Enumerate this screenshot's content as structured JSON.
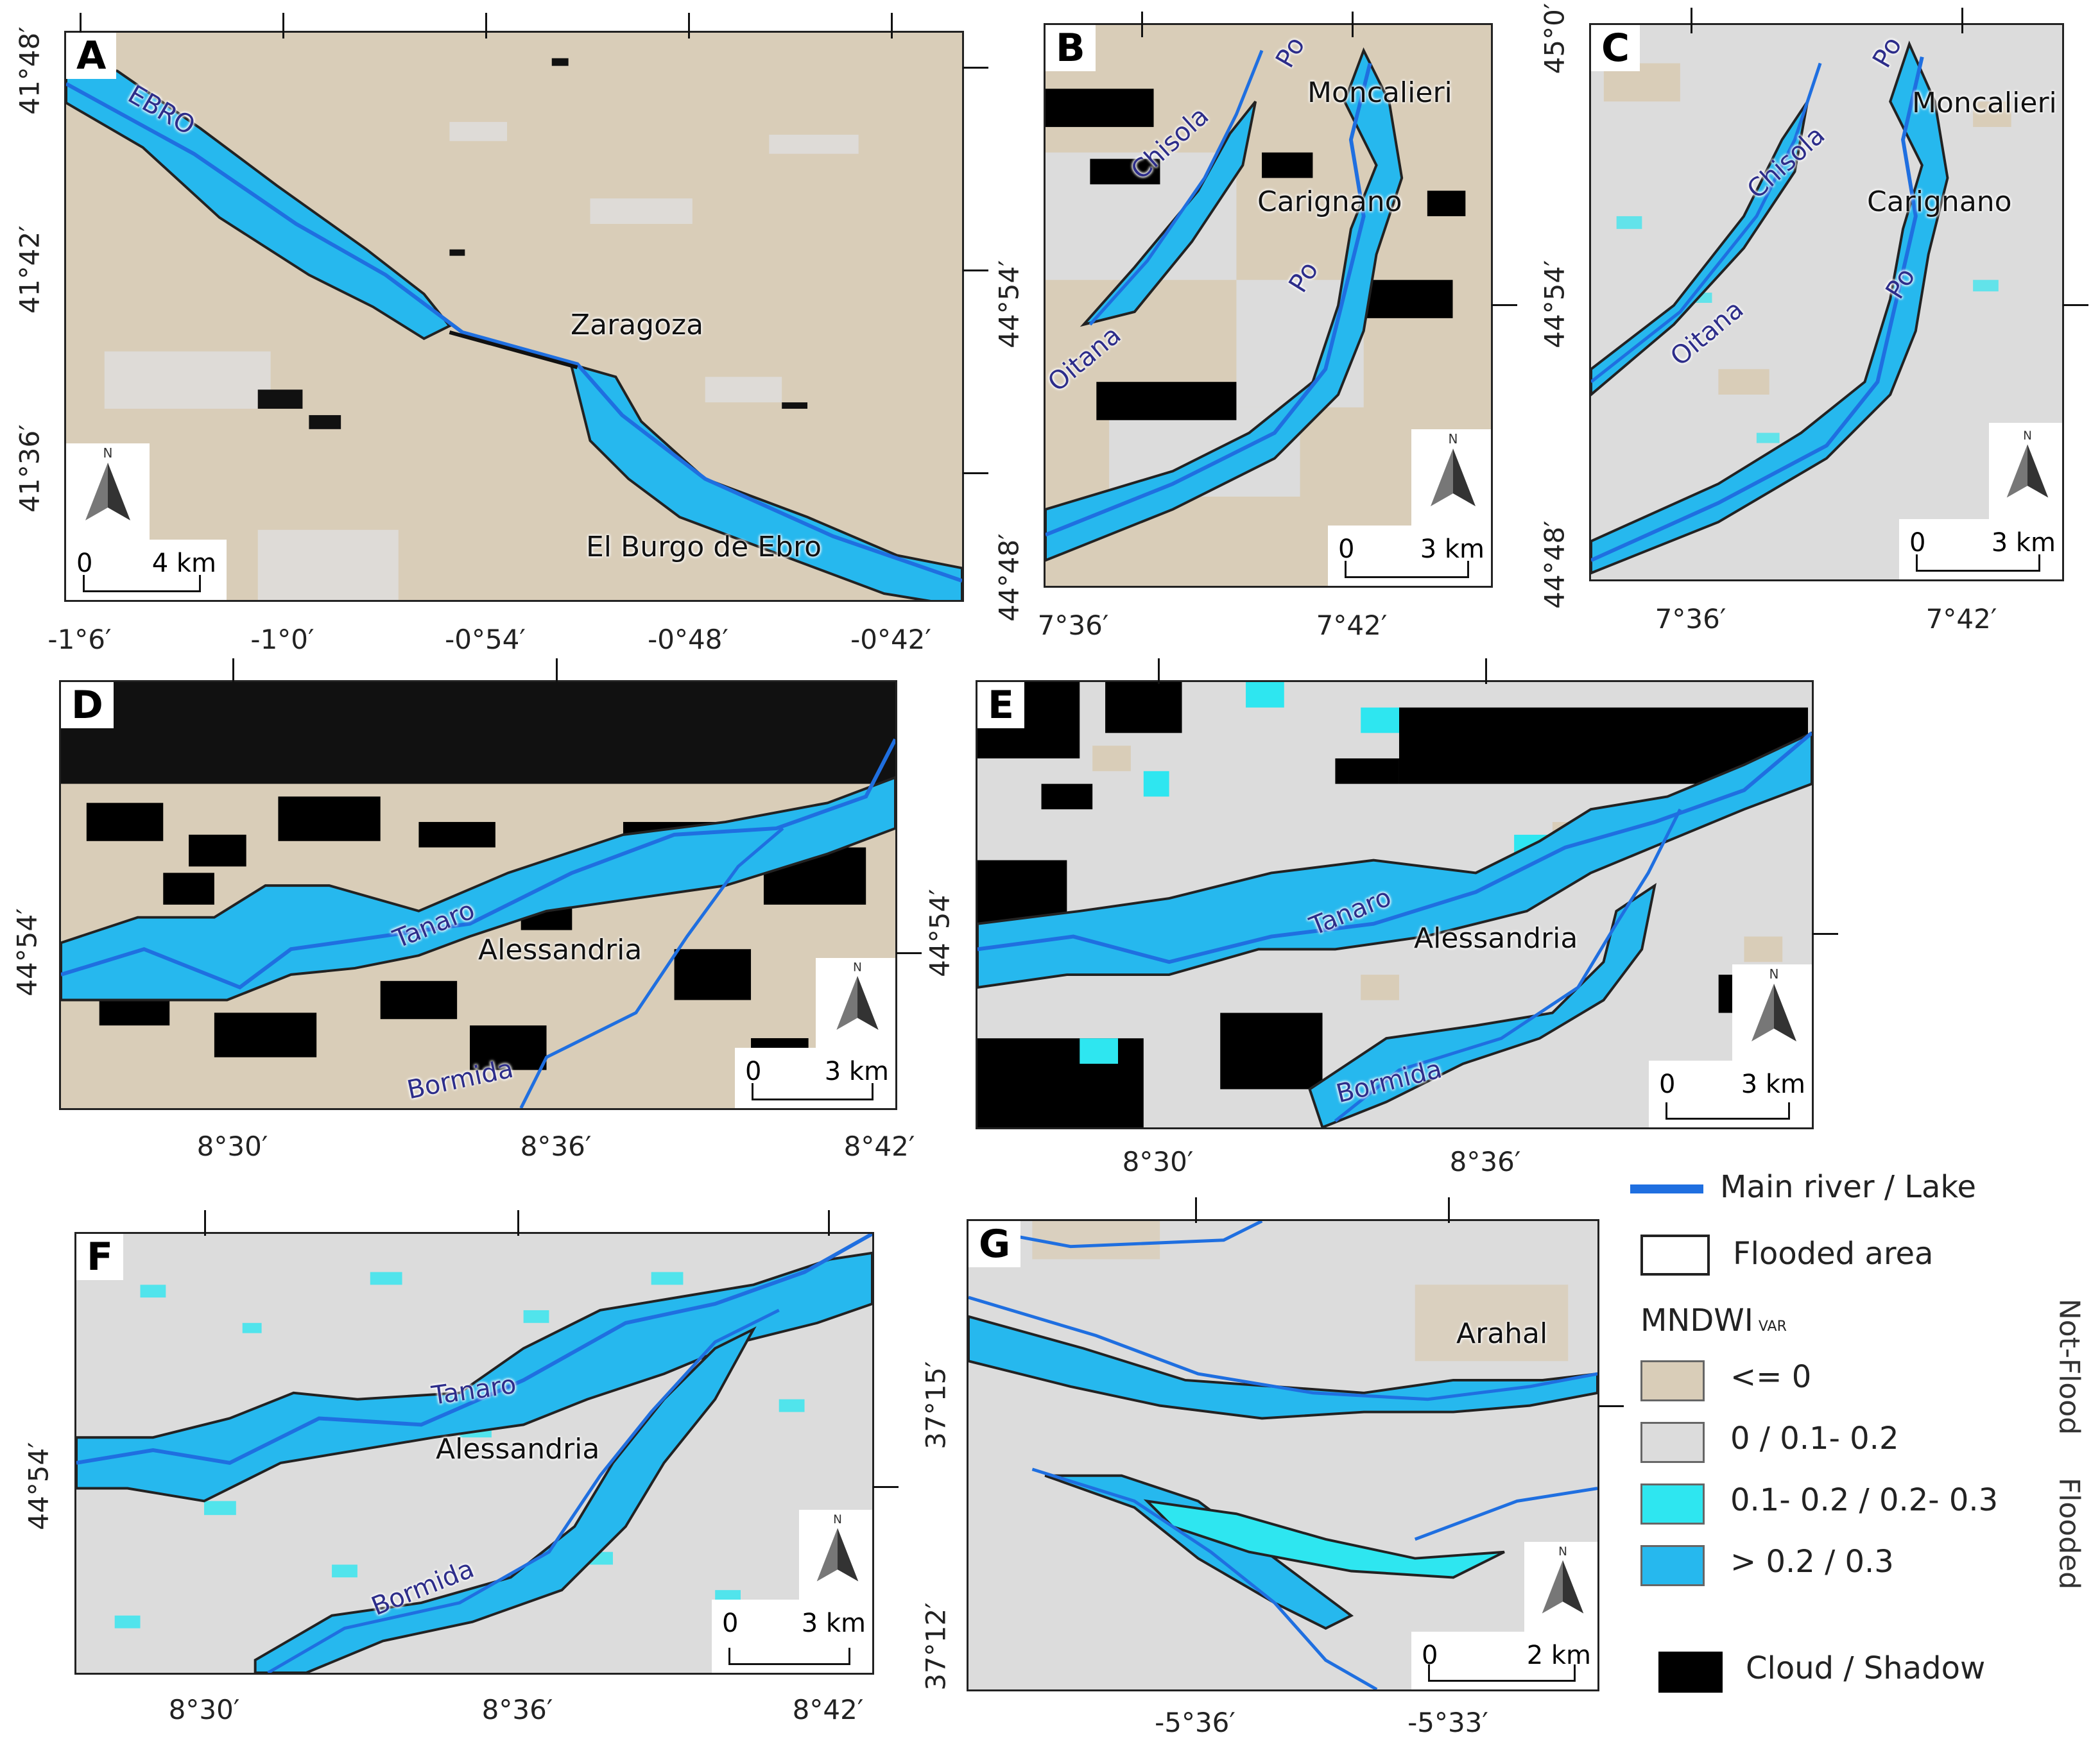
{
  "panels": {
    "A": {
      "label": "A",
      "places": [
        "Zaragoza",
        "El Burgo de Ebro"
      ],
      "rivers": [
        "EBRO"
      ],
      "scale": [
        "0",
        "4 km"
      ],
      "north_label": "N",
      "x_ticks": [
        "-1°6′",
        "-1°0′",
        "-0°54′",
        "-0°48′",
        "-0°42′"
      ],
      "y_ticks": [
        "41°48′",
        "41°42′",
        "41°36′"
      ]
    },
    "B": {
      "label": "B",
      "places": [
        "Moncalieri",
        "Carignano"
      ],
      "rivers": [
        "Po",
        "Chisola",
        "Po",
        "Oitana"
      ],
      "scale": [
        "0",
        "3 km"
      ],
      "north_label": "N",
      "x_ticks": [
        "7°36′",
        "7°42′"
      ],
      "y_ticks": [
        "44°54′",
        "44°48′"
      ]
    },
    "C": {
      "label": "C",
      "places": [
        "Moncalieri",
        "Carignano"
      ],
      "rivers": [
        "Po",
        "Chisola",
        "Po",
        "Oitana"
      ],
      "scale": [
        "0",
        "3 km"
      ],
      "north_label": "N",
      "x_ticks": [
        "7°36′",
        "7°42′"
      ],
      "y_ticks": [
        "45°0′",
        "44°54′",
        "44°48′"
      ]
    },
    "D": {
      "label": "D",
      "places": [
        "Alessandria"
      ],
      "rivers": [
        "Tanaro",
        "Bormida"
      ],
      "scale": [
        "0",
        "3 km"
      ],
      "north_label": "N",
      "x_ticks": [
        "8°30′",
        "8°36′",
        "8°42′"
      ],
      "y_ticks": [
        "44°54′"
      ]
    },
    "E": {
      "label": "E",
      "places": [
        "Alessandria"
      ],
      "rivers": [
        "Tanaro",
        "Bormida"
      ],
      "scale": [
        "0",
        "3 km"
      ],
      "north_label": "N",
      "x_ticks": [
        "8°30′",
        "8°36′"
      ],
      "y_ticks": [
        "44°54′"
      ]
    },
    "F": {
      "label": "F",
      "places": [
        "Alessandria"
      ],
      "rivers": [
        "Tanaro",
        "Bormida"
      ],
      "scale": [
        "0",
        "3 km"
      ],
      "north_label": "N",
      "x_ticks": [
        "8°30′",
        "8°36′",
        "8°42′"
      ],
      "y_ticks": [
        "44°54′"
      ]
    },
    "G": {
      "label": "G",
      "places": [
        "Arahal"
      ],
      "rivers": [],
      "scale": [
        "0",
        "2 km"
      ],
      "north_label": "N",
      "x_ticks": [
        "-5°36′",
        "-5°33′"
      ],
      "y_ticks": [
        "37°15′",
        "37°12′"
      ]
    }
  },
  "legend": {
    "main_river": "Main river /  Lake",
    "flooded_area": "Flooded area",
    "mndwi_title": "MNDWI",
    "mndwi_sub": "VAR",
    "classes": [
      {
        "label": "<= 0",
        "color": "#d9cdb8"
      },
      {
        "label": "0 /  0.1- 0.2",
        "color": "#dcdcdc"
      },
      {
        "label": "0.1- 0.2  /  0.2-  0.3",
        "color": "#2ee6f0"
      },
      {
        "label": "> 0.2 /  0.3",
        "color": "#26b8ee"
      }
    ],
    "not_flood": "Not-Flood",
    "flooded": "Flooded",
    "cloud": "Cloud / Shadow",
    "colors": {
      "river": "#1f6fe0",
      "cloud": "#000000",
      "flood_outline": "#222222"
    }
  }
}
